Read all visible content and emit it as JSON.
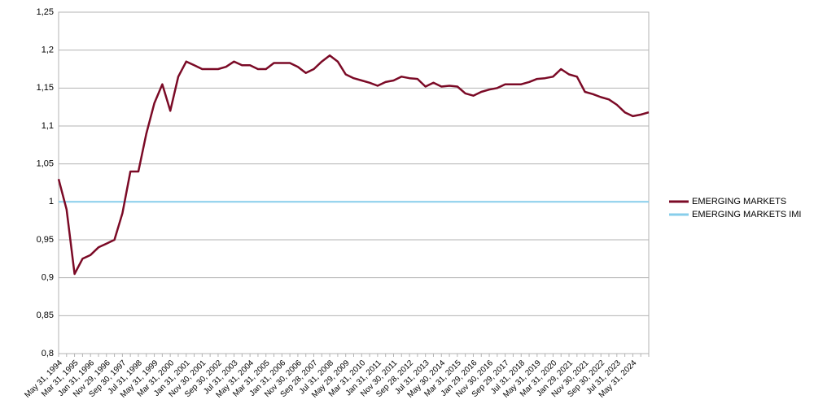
{
  "chart_data": {
    "type": "line",
    "categories": [
      "May 31, 1994",
      null,
      "Mar 31, 1995",
      null,
      "Jan 31, 1996",
      null,
      "Nov 29, 1996",
      null,
      "Sep 30, 1997",
      null,
      "Jul 31, 1998",
      null,
      "May 31, 1999",
      null,
      "Mar 31, 2000",
      null,
      "Jan 31, 2001",
      null,
      "Nov 30, 2001",
      null,
      "Sep 30, 2002",
      null,
      "Jul 31, 2003",
      null,
      "May 31, 2004",
      null,
      "Mar 31, 2005",
      null,
      "Jan 31, 2006",
      null,
      "Nov 30, 2006",
      null,
      "Sep 28, 2007",
      null,
      "Jul 31, 2008",
      null,
      "May 29, 2009",
      null,
      "Mar 31, 2010",
      null,
      "Jan 31, 2011",
      null,
      "Nov 30, 2011",
      null,
      "Sep 28, 2012",
      null,
      "Jul 31, 2013",
      null,
      "May 30, 2014",
      null,
      "Mar 31, 2015",
      null,
      "Jan 29, 2016",
      null,
      "Nov 30, 2016",
      null,
      "Sep 29, 2017",
      null,
      "Jul 31, 2018",
      null,
      "May 31, 2019",
      null,
      "Mar 31, 2020",
      null,
      "Jan 29, 2021",
      null,
      "Nov 30, 2021",
      null,
      "Sep 30, 2022",
      null,
      "Jul 31, 2023",
      null,
      "May 31, 2024",
      null,
      null
    ],
    "series": [
      {
        "name": "EMERGING MARKETS",
        "color": "#7b0a26",
        "values": [
          1.03,
          0.99,
          0.905,
          0.925,
          0.93,
          0.94,
          0.945,
          0.95,
          0.985,
          1.04,
          1.04,
          1.09,
          1.13,
          1.155,
          1.12,
          1.165,
          1.185,
          1.18,
          1.175,
          1.175,
          1.175,
          1.178,
          1.185,
          1.18,
          1.18,
          1.175,
          1.175,
          1.183,
          1.183,
          1.183,
          1.178,
          1.17,
          1.175,
          1.185,
          1.193,
          1.185,
          1.168,
          1.163,
          1.16,
          1.157,
          1.153,
          1.158,
          1.16,
          1.165,
          1.163,
          1.162,
          1.152,
          1.157,
          1.152,
          1.153,
          1.152,
          1.143,
          1.14,
          1.145,
          1.148,
          1.15,
          1.155,
          1.155,
          1.155,
          1.158,
          1.162,
          1.163,
          1.165,
          1.175,
          1.168,
          1.165,
          1.145,
          1.142,
          1.138,
          1.135,
          1.128,
          1.118,
          1.113,
          1.115,
          1.118
        ]
      },
      {
        "name": "EMERGING MARKETS IMI",
        "color": "#87ceeb",
        "values": [
          1,
          1,
          1,
          1,
          1,
          1,
          1,
          1,
          1,
          1,
          1,
          1,
          1,
          1,
          1,
          1,
          1,
          1,
          1,
          1,
          1,
          1,
          1,
          1,
          1,
          1,
          1,
          1,
          1,
          1,
          1,
          1,
          1,
          1,
          1,
          1,
          1,
          1,
          1,
          1,
          1,
          1,
          1,
          1,
          1,
          1,
          1,
          1,
          1,
          1,
          1,
          1,
          1,
          1,
          1,
          1,
          1,
          1,
          1,
          1,
          1,
          1,
          1,
          1,
          1,
          1,
          1,
          1,
          1,
          1,
          1,
          1,
          1,
          1,
          1
        ]
      }
    ],
    "ylim": [
      0.8,
      1.25
    ],
    "yticks": [
      {
        "value": 0.8,
        "label": "0,8"
      },
      {
        "value": 0.85,
        "label": "0,85"
      },
      {
        "value": 0.9,
        "label": "0,9"
      },
      {
        "value": 0.95,
        "label": "0,95"
      },
      {
        "value": 1,
        "label": "1"
      },
      {
        "value": 1.05,
        "label": "1,05"
      },
      {
        "value": 1.1,
        "label": "1,1"
      },
      {
        "value": 1.15,
        "label": "1,15"
      },
      {
        "value": 1.2,
        "label": "1,2"
      },
      {
        "value": 1.25,
        "label": "1,25"
      }
    ],
    "grid": true,
    "legend": "right"
  }
}
